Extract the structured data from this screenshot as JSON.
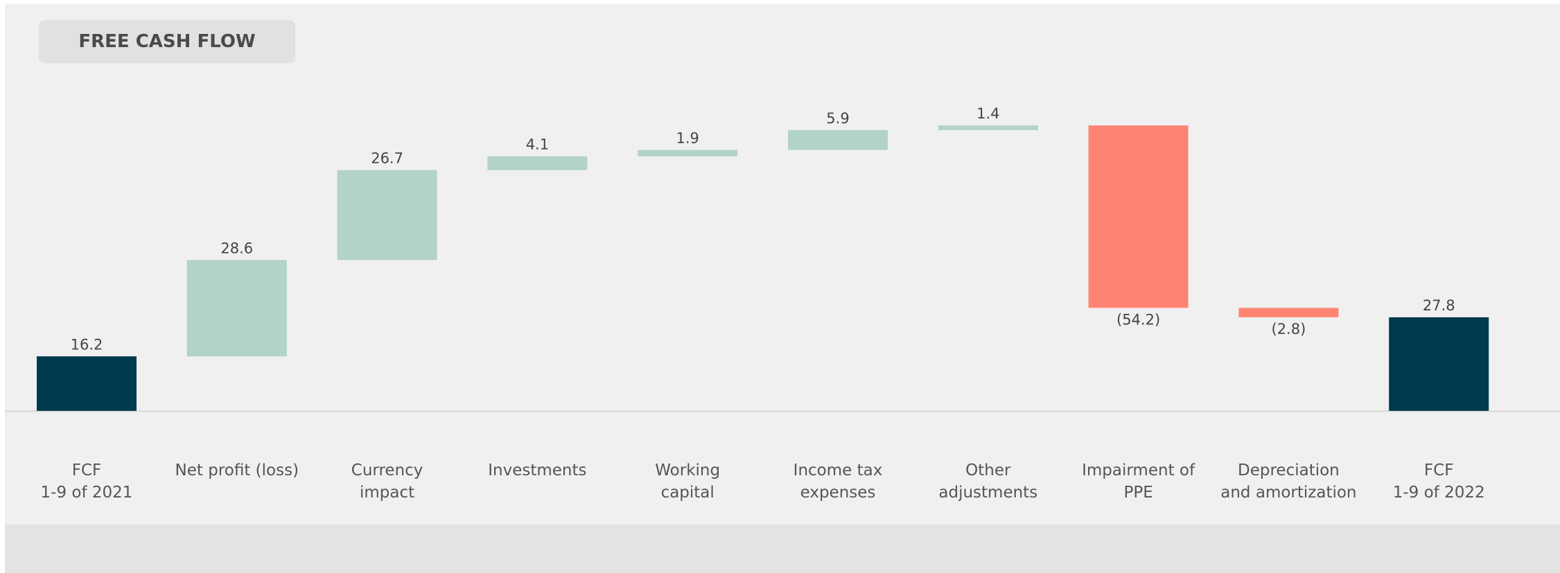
{
  "chart_data": {
    "type": "waterfall",
    "title": "FREE CASH FLOW",
    "categories": [
      "FCF\n1-9 of 2021",
      "Net profit (loss)",
      "Currency\nimpact",
      "Investments",
      "Working\ncapital",
      "Income tax\nexpenses",
      "Other\nadjustments",
      "Impairment of\nPPE",
      "Depreciation\nand amortization",
      "FCF\n1-9 of 2022"
    ],
    "values": [
      16.2,
      28.6,
      26.7,
      4.1,
      1.9,
      5.9,
      1.4,
      -54.2,
      -2.8,
      27.8
    ],
    "value_labels": [
      "16.2",
      "28.6",
      "26.7",
      "4.1",
      "1.9",
      "5.9",
      "1.4",
      "(54.2)",
      "(2.8)",
      "27.8"
    ],
    "total_indices": [
      0,
      9
    ],
    "colors": {
      "total": "#003a4f",
      "increase": "#b2d2ca",
      "decrease": "#ff8473"
    }
  }
}
